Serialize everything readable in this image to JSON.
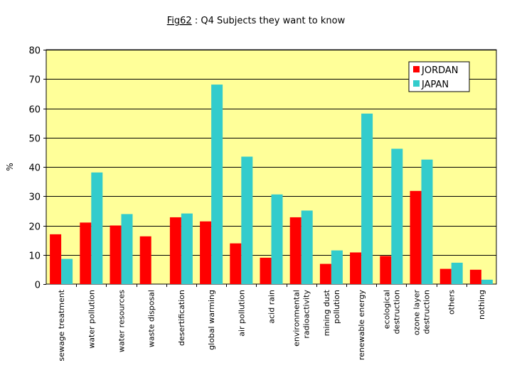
{
  "chart_data": {
    "type": "bar",
    "title_ref": "Fig62",
    "title_rest": " : Q4  Subjects they want to know",
    "ylabel": "%",
    "ylim": [
      0,
      80
    ],
    "yticks": [
      0,
      10,
      20,
      30,
      40,
      50,
      60,
      70,
      80
    ],
    "grid": true,
    "legend_position": "top-right",
    "categories": [
      [
        "sewage treatment"
      ],
      [
        "water pollution"
      ],
      [
        "water resources"
      ],
      [
        "waste disposal"
      ],
      [
        "desertification"
      ],
      [
        "global warming"
      ],
      [
        "air pollution"
      ],
      [
        "acid rain"
      ],
      [
        "environmental",
        "radioactivity"
      ],
      [
        "mining dust",
        "pollution"
      ],
      [
        "renewable energy"
      ],
      [
        "ecological",
        "destruction"
      ],
      [
        "ozone layer",
        "destruction"
      ],
      [
        "others"
      ],
      [
        "nothing"
      ]
    ],
    "series": [
      {
        "name": "JORDAN",
        "color": "#ff0000",
        "values": [
          17,
          21,
          20,
          16.3,
          22.8,
          21.4,
          13.9,
          9,
          22.8,
          6.9,
          10.8,
          9.6,
          31.8,
          5.2,
          4.9
        ]
      },
      {
        "name": "JAPAN",
        "color": "#33cccc",
        "values": [
          8.6,
          38.1,
          23.9,
          0,
          24.1,
          68.1,
          43.5,
          30.6,
          25.1,
          11.5,
          58.2,
          46.2,
          42.5,
          7.3,
          1.5
        ]
      }
    ],
    "colors": {
      "plot_background": "#ffff99",
      "grid": "#000000"
    }
  }
}
